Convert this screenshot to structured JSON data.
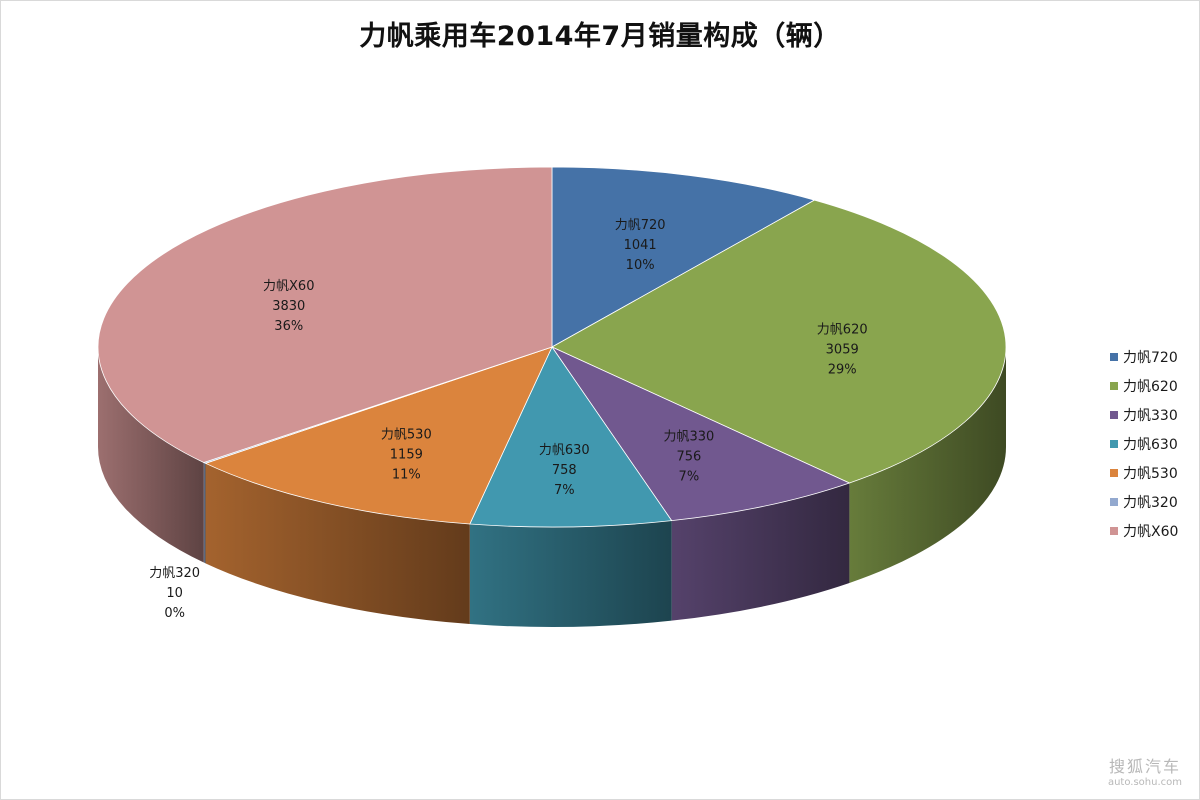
{
  "chart_data": {
    "type": "pie",
    "title": "力帆乘用车2014年7月销量构成（辆）",
    "categories": [
      "力帆720",
      "力帆620",
      "力帆330",
      "力帆630",
      "力帆530",
      "力帆320",
      "力帆X60"
    ],
    "values": [
      1041,
      3059,
      756,
      758,
      1159,
      10,
      3830
    ],
    "percent_labels": [
      "10%",
      "29%",
      "7%",
      "7%",
      "11%",
      "0%",
      "36%"
    ],
    "colors": [
      "#4572A7",
      "#89A54E",
      "#71588F",
      "#4198AF",
      "#DB843D",
      "#93A9CF",
      "#D09494"
    ],
    "legend_position": "right",
    "style": "3d"
  },
  "watermark": {
    "brand": "搜狐汽车",
    "url": "auto.sohu.com"
  }
}
